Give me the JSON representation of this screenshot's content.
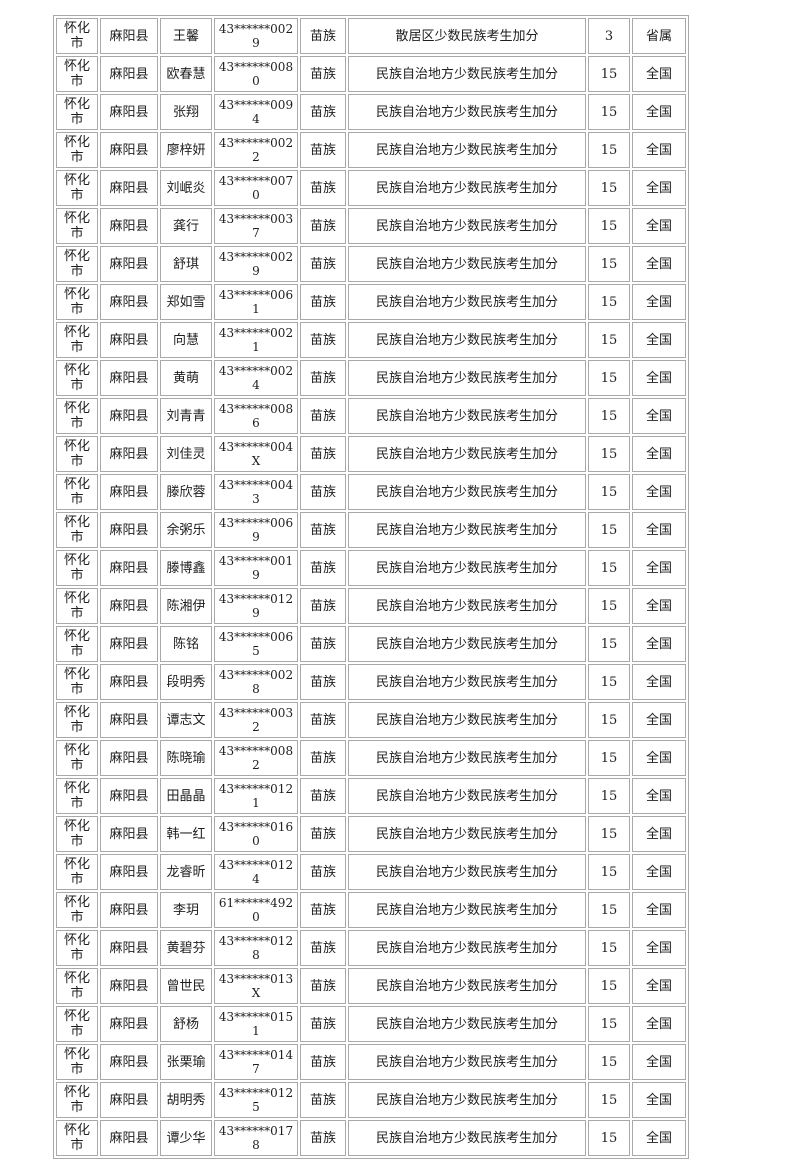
{
  "page": {
    "background": "#ffffff"
  },
  "table": {
    "border_color": "#a9a9a9",
    "row_count": 30,
    "rows": [
      {
        "city": "怀化市",
        "county": "麻阳县",
        "name": "王馨",
        "id": "43******0029",
        "ethnicity": "苗族",
        "reason": "散居区少数民族考生加分",
        "points": "3",
        "scope": "省属"
      },
      {
        "city": "怀化市",
        "county": "麻阳县",
        "name": "欧春慧",
        "id": "43******0080",
        "ethnicity": "苗族",
        "reason": "民族自治地方少数民族考生加分",
        "points": "15",
        "scope": "全国"
      },
      {
        "city": "怀化市",
        "county": "麻阳县",
        "name": "张翔",
        "id": "43******0094",
        "ethnicity": "苗族",
        "reason": "民族自治地方少数民族考生加分",
        "points": "15",
        "scope": "全国"
      },
      {
        "city": "怀化市",
        "county": "麻阳县",
        "name": "廖梓妍",
        "id": "43******0022",
        "ethnicity": "苗族",
        "reason": "民族自治地方少数民族考生加分",
        "points": "15",
        "scope": "全国"
      },
      {
        "city": "怀化市",
        "county": "麻阳县",
        "name": "刘岷炎",
        "id": "43******0070",
        "ethnicity": "苗族",
        "reason": "民族自治地方少数民族考生加分",
        "points": "15",
        "scope": "全国"
      },
      {
        "city": "怀化市",
        "county": "麻阳县",
        "name": "龚行",
        "id": "43******0037",
        "ethnicity": "苗族",
        "reason": "民族自治地方少数民族考生加分",
        "points": "15",
        "scope": "全国"
      },
      {
        "city": "怀化市",
        "county": "麻阳县",
        "name": "舒琪",
        "id": "43******0029",
        "ethnicity": "苗族",
        "reason": "民族自治地方少数民族考生加分",
        "points": "15",
        "scope": "全国"
      },
      {
        "city": "怀化市",
        "county": "麻阳县",
        "name": "郑如雪",
        "id": "43******0061",
        "ethnicity": "苗族",
        "reason": "民族自治地方少数民族考生加分",
        "points": "15",
        "scope": "全国"
      },
      {
        "city": "怀化市",
        "county": "麻阳县",
        "name": "向慧",
        "id": "43******0021",
        "ethnicity": "苗族",
        "reason": "民族自治地方少数民族考生加分",
        "points": "15",
        "scope": "全国"
      },
      {
        "city": "怀化市",
        "county": "麻阳县",
        "name": "黄萌",
        "id": "43******0024",
        "ethnicity": "苗族",
        "reason": "民族自治地方少数民族考生加分",
        "points": "15",
        "scope": "全国"
      },
      {
        "city": "怀化市",
        "county": "麻阳县",
        "name": "刘青青",
        "id": "43******0086",
        "ethnicity": "苗族",
        "reason": "民族自治地方少数民族考生加分",
        "points": "15",
        "scope": "全国"
      },
      {
        "city": "怀化市",
        "county": "麻阳县",
        "name": "刘佳灵",
        "id": "43******004X",
        "ethnicity": "苗族",
        "reason": "民族自治地方少数民族考生加分",
        "points": "15",
        "scope": "全国"
      },
      {
        "city": "怀化市",
        "county": "麻阳县",
        "name": "滕欣蓉",
        "id": "43******0043",
        "ethnicity": "苗族",
        "reason": "民族自治地方少数民族考生加分",
        "points": "15",
        "scope": "全国"
      },
      {
        "city": "怀化市",
        "county": "麻阳县",
        "name": "余粥乐",
        "id": "43******0069",
        "ethnicity": "苗族",
        "reason": "民族自治地方少数民族考生加分",
        "points": "15",
        "scope": "全国"
      },
      {
        "city": "怀化市",
        "county": "麻阳县",
        "name": "滕博鑫",
        "id": "43******0019",
        "ethnicity": "苗族",
        "reason": "民族自治地方少数民族考生加分",
        "points": "15",
        "scope": "全国"
      },
      {
        "city": "怀化市",
        "county": "麻阳县",
        "name": "陈湘伊",
        "id": "43******0129",
        "ethnicity": "苗族",
        "reason": "民族自治地方少数民族考生加分",
        "points": "15",
        "scope": "全国"
      },
      {
        "city": "怀化市",
        "county": "麻阳县",
        "name": "陈铭",
        "id": "43******0065",
        "ethnicity": "苗族",
        "reason": "民族自治地方少数民族考生加分",
        "points": "15",
        "scope": "全国"
      },
      {
        "city": "怀化市",
        "county": "麻阳县",
        "name": "段明秀",
        "id": "43******0028",
        "ethnicity": "苗族",
        "reason": "民族自治地方少数民族考生加分",
        "points": "15",
        "scope": "全国"
      },
      {
        "city": "怀化市",
        "county": "麻阳县",
        "name": "谭志文",
        "id": "43******0032",
        "ethnicity": "苗族",
        "reason": "民族自治地方少数民族考生加分",
        "points": "15",
        "scope": "全国"
      },
      {
        "city": "怀化市",
        "county": "麻阳县",
        "name": "陈晓瑜",
        "id": "43******0082",
        "ethnicity": "苗族",
        "reason": "民族自治地方少数民族考生加分",
        "points": "15",
        "scope": "全国"
      },
      {
        "city": "怀化市",
        "county": "麻阳县",
        "name": "田晶晶",
        "id": "43******0121",
        "ethnicity": "苗族",
        "reason": "民族自治地方少数民族考生加分",
        "points": "15",
        "scope": "全国"
      },
      {
        "city": "怀化市",
        "county": "麻阳县",
        "name": "韩一红",
        "id": "43******0160",
        "ethnicity": "苗族",
        "reason": "民族自治地方少数民族考生加分",
        "points": "15",
        "scope": "全国"
      },
      {
        "city": "怀化市",
        "county": "麻阳县",
        "name": "龙睿昕",
        "id": "43******0124",
        "ethnicity": "苗族",
        "reason": "民族自治地方少数民族考生加分",
        "points": "15",
        "scope": "全国"
      },
      {
        "city": "怀化市",
        "county": "麻阳县",
        "name": "李玥",
        "id": "61******4920",
        "ethnicity": "苗族",
        "reason": "民族自治地方少数民族考生加分",
        "points": "15",
        "scope": "全国"
      },
      {
        "city": "怀化市",
        "county": "麻阳县",
        "name": "黄碧芬",
        "id": "43******0128",
        "ethnicity": "苗族",
        "reason": "民族自治地方少数民族考生加分",
        "points": "15",
        "scope": "全国"
      },
      {
        "city": "怀化市",
        "county": "麻阳县",
        "name": "曾世民",
        "id": "43******013X",
        "ethnicity": "苗族",
        "reason": "民族自治地方少数民族考生加分",
        "points": "15",
        "scope": "全国"
      },
      {
        "city": "怀化市",
        "county": "麻阳县",
        "name": "舒杨",
        "id": "43******0151",
        "ethnicity": "苗族",
        "reason": "民族自治地方少数民族考生加分",
        "points": "15",
        "scope": "全国"
      },
      {
        "city": "怀化市",
        "county": "麻阳县",
        "name": "张栗瑜",
        "id": "43******0147",
        "ethnicity": "苗族",
        "reason": "民族自治地方少数民族考生加分",
        "points": "15",
        "scope": "全国"
      },
      {
        "city": "怀化市",
        "county": "麻阳县",
        "name": "胡明秀",
        "id": "43******0125",
        "ethnicity": "苗族",
        "reason": "民族自治地方少数民族考生加分",
        "points": "15",
        "scope": "全国"
      },
      {
        "city": "怀化市",
        "county": "麻阳县",
        "name": "谭少华",
        "id": "43******0178",
        "ethnicity": "苗族",
        "reason": "民族自治地方少数民族考生加分",
        "points": "15",
        "scope": "全国"
      }
    ]
  }
}
